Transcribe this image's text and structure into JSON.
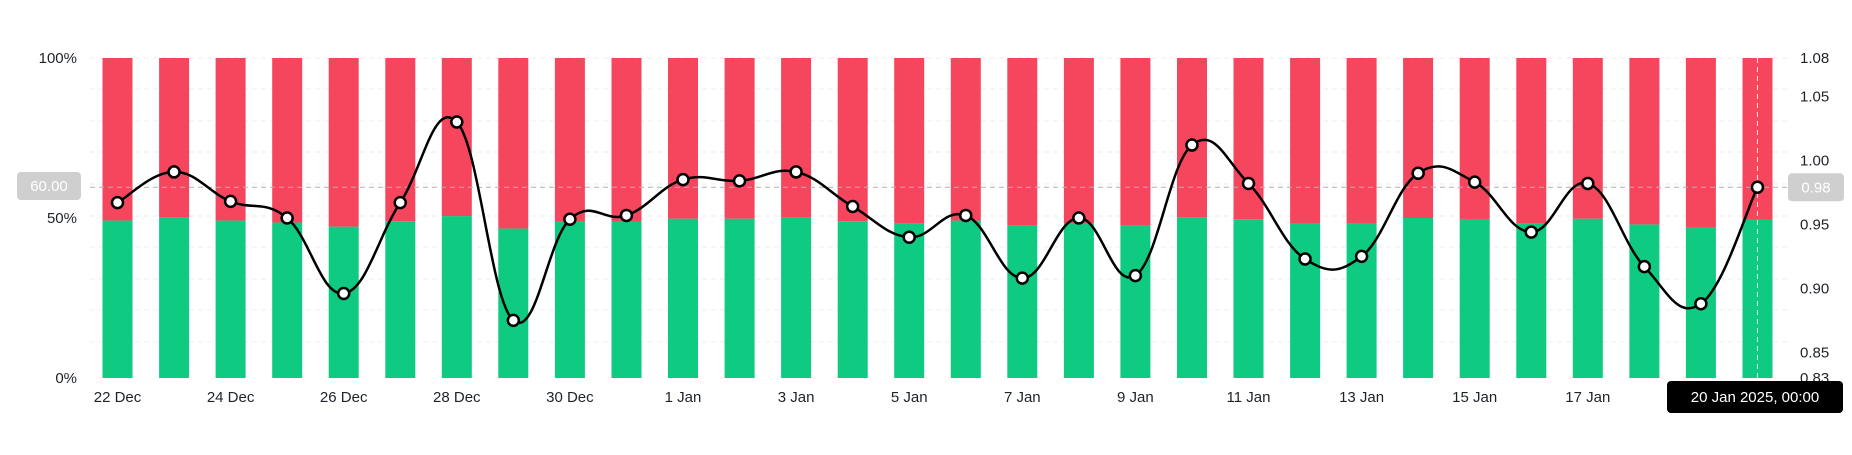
{
  "chart_data": {
    "type": "bar",
    "subtype": "stacked-percent bar with line overlay",
    "left_axis": {
      "ticks": [
        "0%",
        "50%",
        "100%"
      ],
      "range": [
        0,
        100
      ]
    },
    "right_axis": {
      "ticks": [
        "0.83",
        "0.85",
        "0.90",
        "0.95",
        "1.00",
        "1.05",
        "1.08"
      ],
      "range": [
        0.83,
        1.08
      ]
    },
    "x_tick_labels": [
      "22 Dec",
      "24 Dec",
      "26 Dec",
      "28 Dec",
      "30 Dec",
      "1 Jan",
      "3 Jan",
      "5 Jan",
      "7 Jan",
      "9 Jan",
      "11 Jan",
      "13 Jan",
      "15 Jan",
      "17 Jan"
    ],
    "categories": [
      "22 Dec",
      "23 Dec",
      "24 Dec",
      "25 Dec",
      "26 Dec",
      "27 Dec",
      "28 Dec",
      "29 Dec",
      "30 Dec",
      "31 Dec",
      "1 Jan",
      "2 Jan",
      "3 Jan",
      "4 Jan",
      "5 Jan",
      "6 Jan",
      "7 Jan",
      "8 Jan",
      "9 Jan",
      "10 Jan",
      "11 Jan",
      "12 Jan",
      "13 Jan",
      "14 Jan",
      "15 Jan",
      "16 Jan",
      "17 Jan",
      "18 Jan",
      "19 Jan",
      "20 Jan"
    ],
    "series": [
      {
        "kind": "bar",
        "color": "#0ecb81",
        "values": [
          49.2,
          50.2,
          49.2,
          48.6,
          47.3,
          49.0,
          50.6,
          46.7,
          48.8,
          48.9,
          49.8,
          49.8,
          50.1,
          49.0,
          48.4,
          49.2,
          47.6,
          48.3,
          47.8,
          50.2,
          49.6,
          48.3,
          48.3,
          50.0,
          49.7,
          48.2,
          49.8,
          48.0,
          47.0,
          49.4
        ]
      },
      {
        "kind": "bar",
        "color": "#f6465d",
        "values": [
          50.8,
          49.8,
          50.8,
          51.4,
          52.7,
          51.0,
          49.4,
          53.3,
          51.2,
          51.1,
          50.2,
          50.2,
          49.9,
          51.0,
          51.6,
          50.8,
          52.4,
          51.7,
          52.2,
          49.8,
          50.4,
          51.7,
          51.7,
          50.0,
          50.3,
          51.8,
          50.2,
          52.0,
          53.0,
          50.6
        ]
      },
      {
        "kind": "line",
        "color": "#000000",
        "values": [
          0.967,
          0.991,
          0.968,
          0.955,
          0.896,
          0.967,
          1.03,
          0.875,
          0.954,
          0.957,
          0.985,
          0.984,
          0.991,
          0.964,
          0.94,
          0.957,
          0.908,
          0.955,
          0.91,
          1.012,
          0.982,
          0.923,
          0.925,
          0.99,
          0.983,
          0.944,
          0.982,
          0.917,
          0.888,
          0.979
        ]
      }
    ],
    "crosshair": {
      "left_value_label": "60.00",
      "right_value_label": "0.98",
      "x_label": "20 Jan 2025, 00:00",
      "index": 29
    }
  }
}
